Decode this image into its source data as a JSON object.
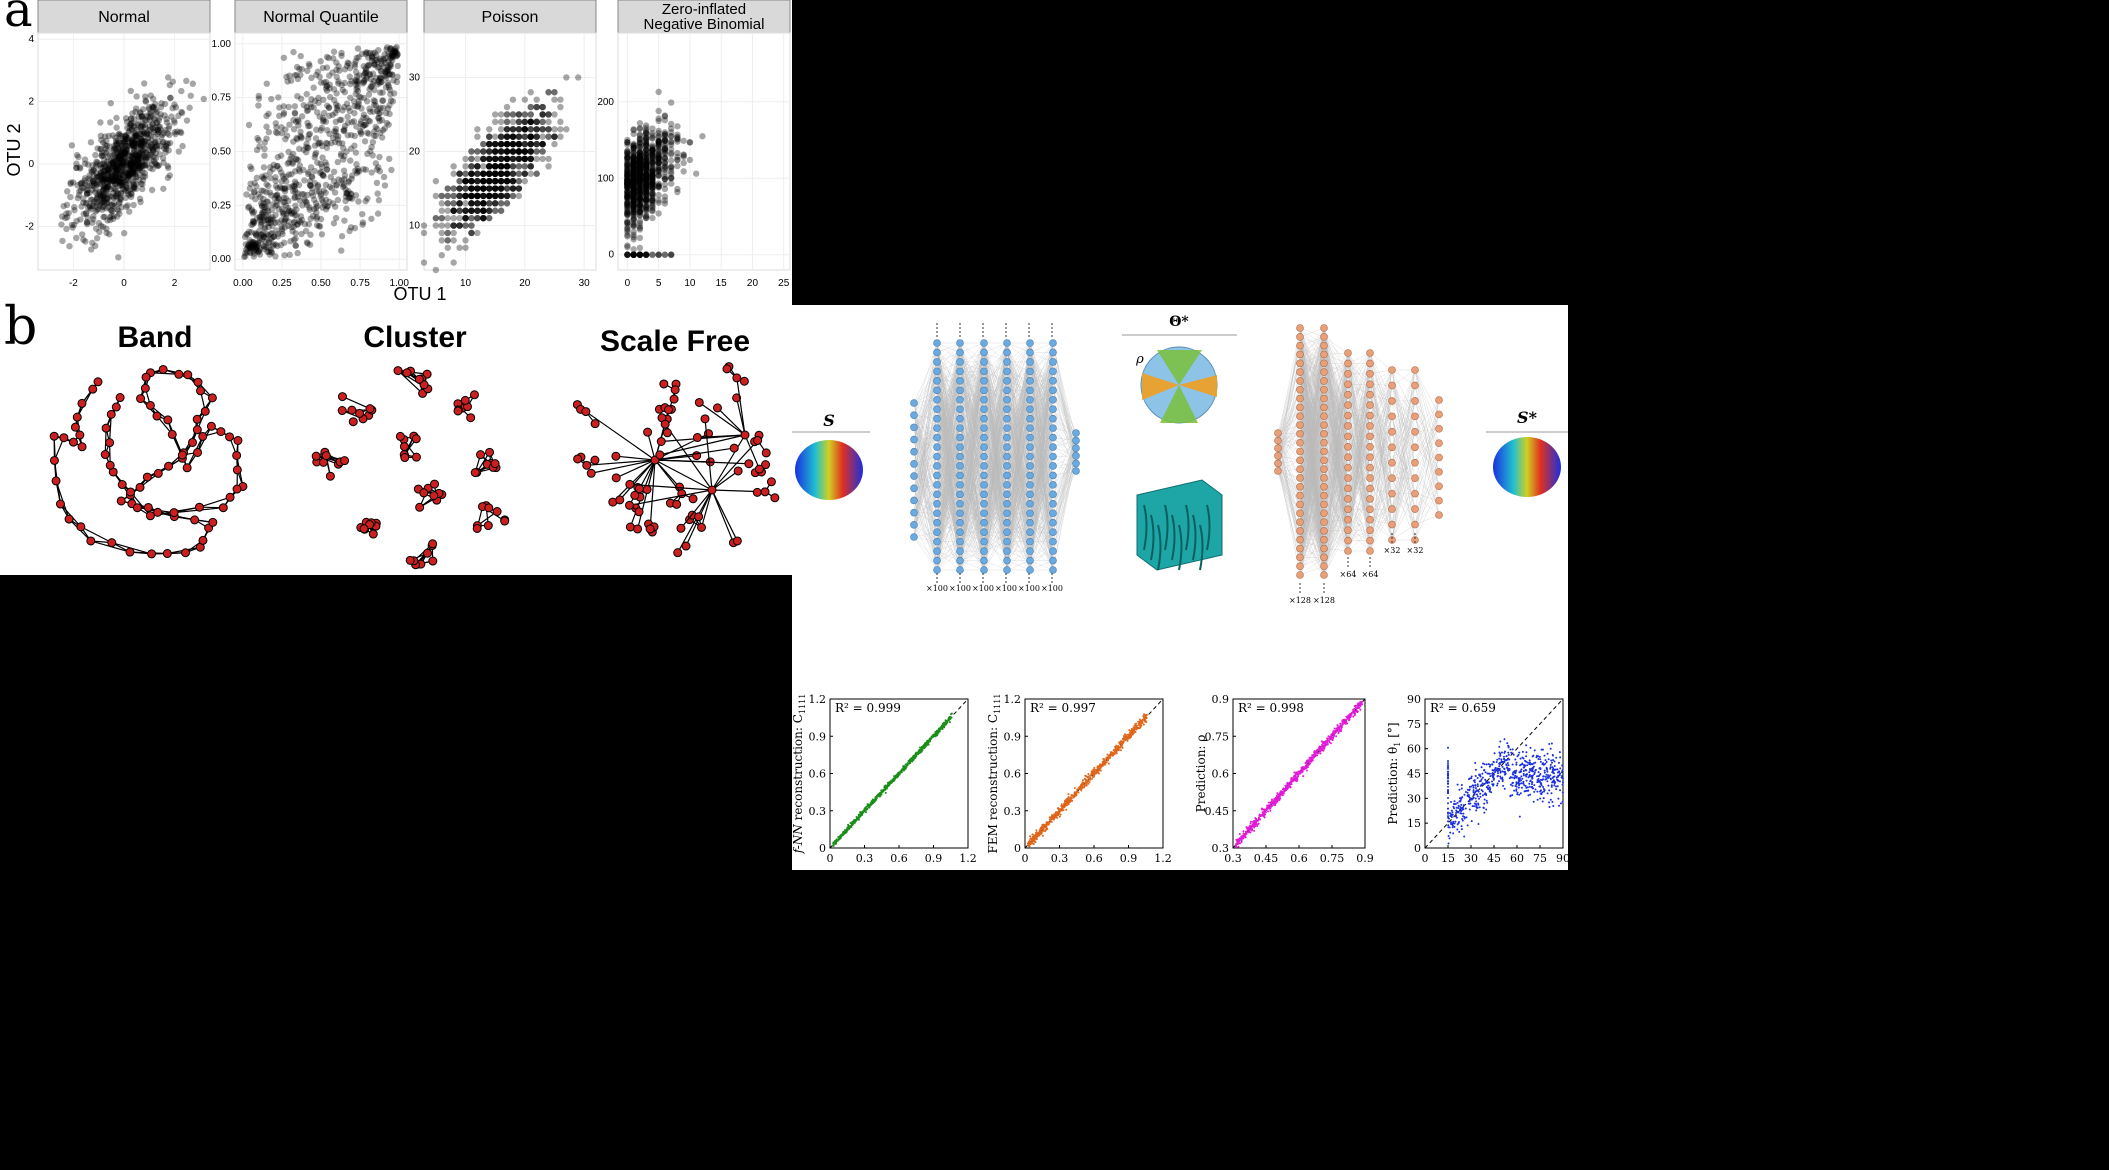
{
  "panel_a": {
    "label": "a",
    "y_axis_title": "OTU 2",
    "x_axis_title": "OTU 1",
    "facets": [
      {
        "title": "Normal",
        "xticks": [
          "-2",
          "0",
          "2"
        ],
        "yticks": [
          "-2",
          "0",
          "2",
          "4"
        ]
      },
      {
        "title": "Normal Quantile",
        "xticks": [
          "0.00",
          "0.25",
          "0.50",
          "0.75",
          "1.00"
        ],
        "yticks": [
          "0.00",
          "0.25",
          "0.50",
          "0.75",
          "1.00"
        ]
      },
      {
        "title": "Poisson",
        "xticks": [
          "10",
          "20",
          "30"
        ],
        "yticks": [
          "10",
          "20",
          "30"
        ]
      },
      {
        "title_line1": "Zero-inflated",
        "title_line2": "Negative Binomial",
        "xticks": [
          "0",
          "5",
          "10",
          "15",
          "20",
          "25"
        ],
        "yticks": [
          "0",
          "100",
          "200"
        ]
      }
    ]
  },
  "panel_b": {
    "label": "b",
    "graphs": [
      {
        "title": "Band"
      },
      {
        "title": "Cluster"
      },
      {
        "title": "Scale Free"
      }
    ]
  },
  "panel_nn": {
    "input_label": "S",
    "output_label": "S*",
    "theta_label": "Θ*",
    "rho_label": "ρ",
    "encoder_widths": [
      "×100",
      "×100",
      "×100",
      "×100",
      "×100",
      "×100"
    ],
    "decoder_widths_top": [
      "×64",
      "×64",
      "×32",
      "×32"
    ],
    "decoder_widths_bottom": [
      "×128",
      "×128"
    ]
  },
  "chart_data": [
    {
      "type": "scatter",
      "ylabel_prefix": "f-NN",
      "ylabel_rest": " reconstruction: C",
      "ylabel_sub": "1111",
      "annotation": "R² = 0.999",
      "color": "#1a8f1a",
      "xticks": [
        "0",
        "0.3",
        "0.6",
        "0.9",
        "1.2"
      ],
      "yticks": [
        "0",
        "0.3",
        "0.6",
        "0.9",
        "1.2"
      ],
      "xlim": [
        0,
        1.2
      ],
      "ylim": [
        0,
        1.2
      ],
      "relation": "y ≈ x"
    },
    {
      "type": "scatter",
      "ylabel_prefix": "FEM",
      "ylabel_rest": " reconstruction: C",
      "ylabel_sub": "1111",
      "annotation": "R² = 0.997",
      "color": "#e0661a",
      "xticks": [
        "0",
        "0.3",
        "0.6",
        "0.9",
        "1.2"
      ],
      "yticks": [
        "0",
        "0.3",
        "0.6",
        "0.9",
        "1.2"
      ],
      "xlim": [
        0,
        1.2
      ],
      "ylim": [
        0,
        1.2
      ],
      "relation": "y ≈ x"
    },
    {
      "type": "scatter",
      "ylabel_prefix": "Prediction: ",
      "ylabel_rest": "ρ",
      "ylabel_sub": "",
      "annotation": "R² = 0.998",
      "color": "#e11ad8",
      "xticks": [
        "0.3",
        "0.45",
        "0.6",
        "0.75",
        "0.9"
      ],
      "yticks": [
        "0.3",
        "0.45",
        "0.6",
        "0.75",
        "0.9"
      ],
      "xlim": [
        0.3,
        0.9
      ],
      "ylim": [
        0.3,
        0.9
      ],
      "relation": "y ≈ x"
    },
    {
      "type": "scatter",
      "ylabel_prefix": "Prediction: ",
      "ylabel_rest": "θ",
      "ylabel_sub": "1",
      "ylabel_unit": " [°]",
      "annotation": "R² = 0.659",
      "color": "#1a2fe0",
      "xticks": [
        "0",
        "15",
        "30",
        "45",
        "60",
        "75",
        "90"
      ],
      "yticks": [
        "0",
        "15",
        "30",
        "45",
        "60",
        "75",
        "90"
      ],
      "xlim": [
        0,
        90
      ],
      "ylim": [
        0,
        90
      ],
      "relation": "y ≈ x up to ~60, saturating 30–60 beyond"
    }
  ]
}
